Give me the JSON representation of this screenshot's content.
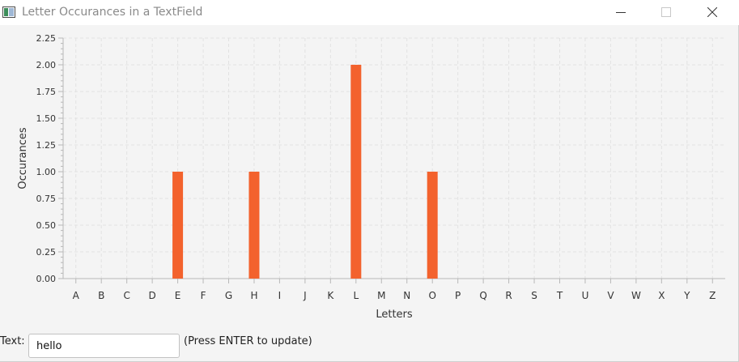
{
  "window": {
    "title": "Letter Occurances in a TextField"
  },
  "colors": {
    "bar": "#f3622d",
    "grid": "#e2e2e2",
    "axis": "#b8b8b8",
    "text": "#333333"
  },
  "chart_data": {
    "type": "bar",
    "xlabel": "Letters",
    "ylabel": "Occurances",
    "categories": [
      "A",
      "B",
      "C",
      "D",
      "E",
      "F",
      "G",
      "H",
      "I",
      "J",
      "K",
      "L",
      "M",
      "N",
      "O",
      "P",
      "Q",
      "R",
      "S",
      "T",
      "U",
      "V",
      "W",
      "X",
      "Y",
      "Z"
    ],
    "values": [
      0,
      0,
      0,
      0,
      1,
      0,
      0,
      1,
      0,
      0,
      0,
      2,
      0,
      0,
      1,
      0,
      0,
      0,
      0,
      0,
      0,
      0,
      0,
      0,
      0,
      0
    ],
    "ylim": [
      0,
      2.25
    ],
    "yticks": [
      "0.00",
      "0.25",
      "0.50",
      "0.75",
      "1.00",
      "1.25",
      "1.50",
      "1.75",
      "2.00",
      "2.25"
    ],
    "grid": true,
    "legend": "none"
  },
  "input": {
    "label": "Text:",
    "value": "hello",
    "hint": "(Press ENTER to update)"
  }
}
